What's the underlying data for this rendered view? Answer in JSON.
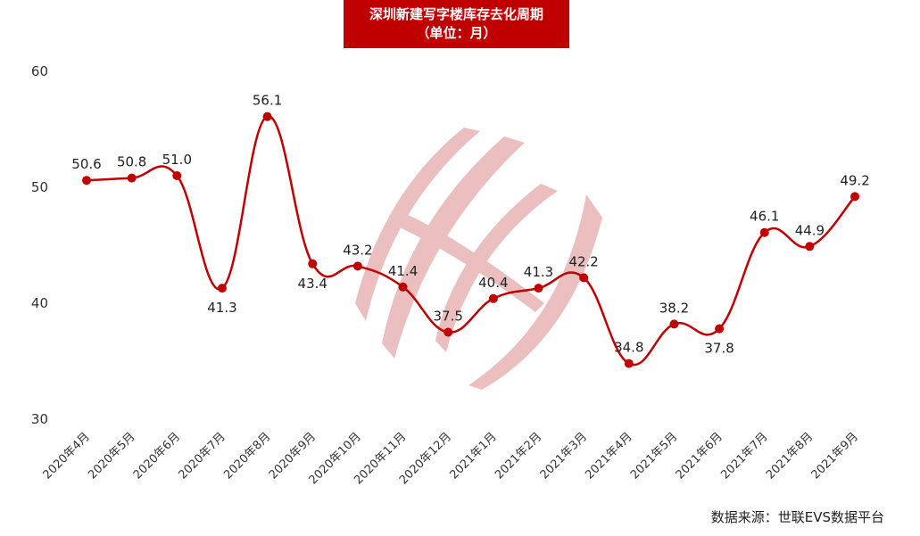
{
  "title": "深圳新建写字楼库存去化周期",
  "subtitle": "（单位：月）",
  "source": "数据来源：世联EVS数据平台",
  "colors": {
    "series": "#c00000",
    "title_bg": "#c00000",
    "watermark": "#e8b4b4"
  },
  "chart_data": {
    "type": "line",
    "smooth": true,
    "title": "深圳新建写字楼库存去化周期",
    "subtitle": "（单位：月）",
    "categories": [
      "2020年4月",
      "2020年5月",
      "2020年6月",
      "2020年7月",
      "2020年8月",
      "2020年9月",
      "2020年10月",
      "2020年11月",
      "2020年12月",
      "2021年1月",
      "2021年2月",
      "2021年3月",
      "2021年4月",
      "2021年5月",
      "2021年6月",
      "2021年7月",
      "2021年8月",
      "2021年9月"
    ],
    "values": [
      50.6,
      50.8,
      51.0,
      41.3,
      56.1,
      43.4,
      43.2,
      41.4,
      37.5,
      40.4,
      41.3,
      42.2,
      34.8,
      38.2,
      37.8,
      46.1,
      44.9,
      49.2
    ],
    "label_position": [
      "above",
      "above",
      "above",
      "below",
      "above",
      "below",
      "above",
      "above",
      "above",
      "above",
      "above",
      "above",
      "above",
      "above",
      "below",
      "above",
      "above",
      "above"
    ],
    "ylim": [
      30,
      60
    ],
    "yticks": [
      30,
      40,
      50,
      60
    ],
    "xlabel": "",
    "ylabel": "",
    "grid": false,
    "legend": "none"
  }
}
